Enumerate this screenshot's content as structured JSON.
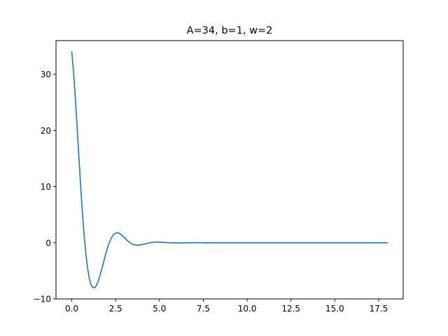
{
  "chart_data": {
    "type": "line",
    "title": "A=34, b=1, w=2",
    "xlabel": "",
    "ylabel": "",
    "xlim": [
      -0.9,
      18.9
    ],
    "ylim": [
      -10,
      36
    ],
    "xticks": [
      {
        "value": 0,
        "label": "0.0"
      },
      {
        "value": 2.5,
        "label": "2.5"
      },
      {
        "value": 5,
        "label": "5.0"
      },
      {
        "value": 7.5,
        "label": "7.5"
      },
      {
        "value": 10,
        "label": "10.0"
      },
      {
        "value": 12.5,
        "label": "12.5"
      },
      {
        "value": 15,
        "label": "15.0"
      },
      {
        "value": 17.5,
        "label": "17.5"
      }
    ],
    "yticks": [
      {
        "value": -10,
        "label": "−10"
      },
      {
        "value": 0,
        "label": "0"
      },
      {
        "value": 10,
        "label": "10"
      },
      {
        "value": 20,
        "label": "20"
      },
      {
        "value": 30,
        "label": "30"
      }
    ],
    "grid": false,
    "series": [
      {
        "color": "#1f77b4",
        "x": [
          0,
          0.1,
          0.2,
          0.3,
          0.4,
          0.5,
          0.6,
          0.7,
          0.8,
          0.9,
          1.0,
          1.1,
          1.2,
          1.3,
          1.4,
          1.5,
          1.6,
          1.7,
          1.8,
          1.9,
          2.0,
          2.1,
          2.2,
          2.3,
          2.4,
          2.5,
          2.6,
          2.7,
          2.8,
          2.9,
          3.0,
          3.1,
          3.2,
          3.3,
          3.4,
          3.5,
          3.6,
          3.7,
          3.8,
          3.9,
          4.0,
          4.1,
          4.2,
          4.3,
          4.4,
          4.5,
          4.6,
          4.7,
          4.8,
          4.9,
          5.0,
          5.2,
          5.4,
          5.6,
          5.8,
          6.0,
          6.2,
          6.4,
          6.6,
          6.8,
          7.0,
          7.2,
          7.4,
          7.6,
          7.8,
          8.0,
          8.5,
          9.0,
          9.5,
          10.0,
          11.0,
          12.0,
          13.0,
          14.0,
          15.0,
          16.0,
          17.0,
          18.0
        ],
        "y": [
          34.0,
          30.4,
          25.9,
          20.8,
          15.5,
          10.4,
          5.6,
          1.5,
          -1.9,
          -4.5,
          -6.4,
          -7.5,
          -8.0,
          -8.0,
          -7.6,
          -6.9,
          -5.9,
          -4.8,
          -3.6,
          -2.4,
          -1.3,
          -0.3,
          0.5,
          1.1,
          1.5,
          1.7,
          1.8,
          1.7,
          1.5,
          1.2,
          0.9,
          0.6,
          0.3,
          0.05,
          -0.15,
          -0.3,
          -0.38,
          -0.42,
          -0.42,
          -0.39,
          -0.34,
          -0.27,
          -0.19,
          -0.11,
          -0.04,
          0.02,
          0.07,
          0.1,
          0.11,
          0.11,
          0.1,
          0.07,
          0.03,
          0.0,
          -0.02,
          -0.03,
          -0.03,
          -0.02,
          -0.01,
          0.0,
          0.01,
          0.01,
          0.01,
          0.0,
          0.0,
          0.0,
          0.0,
          0.0,
          0.0,
          0.0,
          0.0,
          0.0,
          0.0,
          0.0,
          0.0,
          0.0,
          0.0,
          0.0
        ]
      }
    ]
  }
}
